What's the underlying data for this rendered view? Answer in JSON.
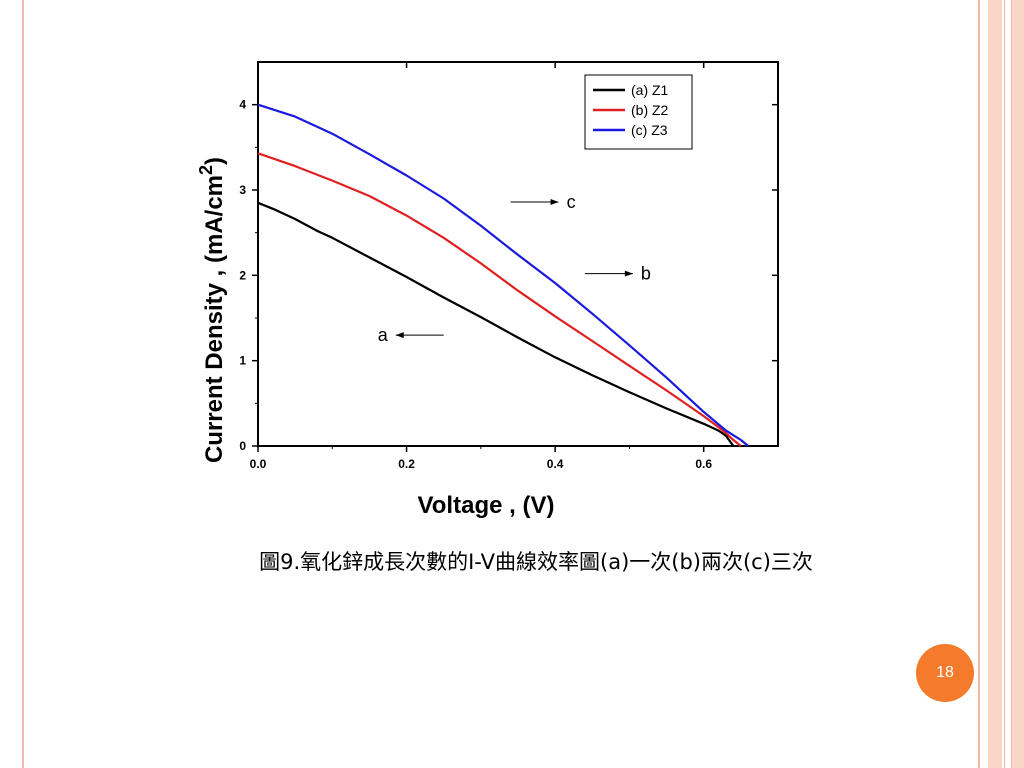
{
  "caption": "圖9.氧化鋅成長次數的I-V曲線效率圖(a)一次(b)兩次(c)三次",
  "page_number": "18",
  "colors": {
    "accent": "#f47b2c",
    "frame": "#fbd6c8"
  },
  "chart_data": {
    "type": "line",
    "xlabel": "Voltage , (V)",
    "ylabel": "Current Density , (mA/cm",
    "ylabel_superscript": "2",
    "ylabel_suffix": ")",
    "xlim": [
      0,
      0.7
    ],
    "ylim": [
      0,
      4.5
    ],
    "xticks": [
      0,
      0.2,
      0.4,
      0.6
    ],
    "xtick_labels": [
      "0.0",
      "0.2",
      "0.4",
      "0.6"
    ],
    "yticks": [
      0,
      1,
      2,
      3,
      4
    ],
    "ytick_labels": [
      "0",
      "1",
      "2",
      "3",
      "4"
    ],
    "grid": false,
    "legend_position": "top-right",
    "series": [
      {
        "name": "(a) Z1",
        "color": "#000000",
        "x": [
          0,
          0.02,
          0.05,
          0.08,
          0.1,
          0.15,
          0.2,
          0.25,
          0.3,
          0.35,
          0.4,
          0.45,
          0.5,
          0.55,
          0.6,
          0.62,
          0.63,
          0.64
        ],
        "y": [
          2.85,
          2.78,
          2.66,
          2.52,
          2.44,
          2.21,
          1.98,
          1.74,
          1.51,
          1.27,
          1.04,
          0.83,
          0.63,
          0.44,
          0.26,
          0.18,
          0.12,
          0.0
        ]
      },
      {
        "name": "(b) Z2",
        "color": "#e02020",
        "x": [
          0,
          0.05,
          0.1,
          0.15,
          0.2,
          0.25,
          0.3,
          0.35,
          0.4,
          0.45,
          0.5,
          0.55,
          0.6,
          0.62,
          0.63,
          0.64,
          0.65
        ],
        "y": [
          3.43,
          3.28,
          3.11,
          2.93,
          2.7,
          2.44,
          2.14,
          1.82,
          1.52,
          1.23,
          0.94,
          0.65,
          0.35,
          0.22,
          0.15,
          0.07,
          0.0
        ]
      },
      {
        "name": "(c) Z3",
        "color": "#1a1adf",
        "x": [
          0,
          0.05,
          0.1,
          0.15,
          0.2,
          0.25,
          0.3,
          0.35,
          0.4,
          0.45,
          0.5,
          0.55,
          0.6,
          0.63,
          0.65,
          0.66
        ],
        "y": [
          4.0,
          3.86,
          3.66,
          3.42,
          3.17,
          2.9,
          2.58,
          2.24,
          1.91,
          1.55,
          1.18,
          0.8,
          0.4,
          0.18,
          0.07,
          0.0
        ]
      }
    ],
    "annotations": [
      {
        "text": "c",
        "x": 0.34,
        "y": 2.86,
        "arrow": "right"
      },
      {
        "text": "b",
        "x": 0.44,
        "y": 2.02,
        "arrow": "right"
      },
      {
        "text": "a",
        "x": 0.25,
        "y": 1.3,
        "arrow": "left"
      }
    ]
  }
}
